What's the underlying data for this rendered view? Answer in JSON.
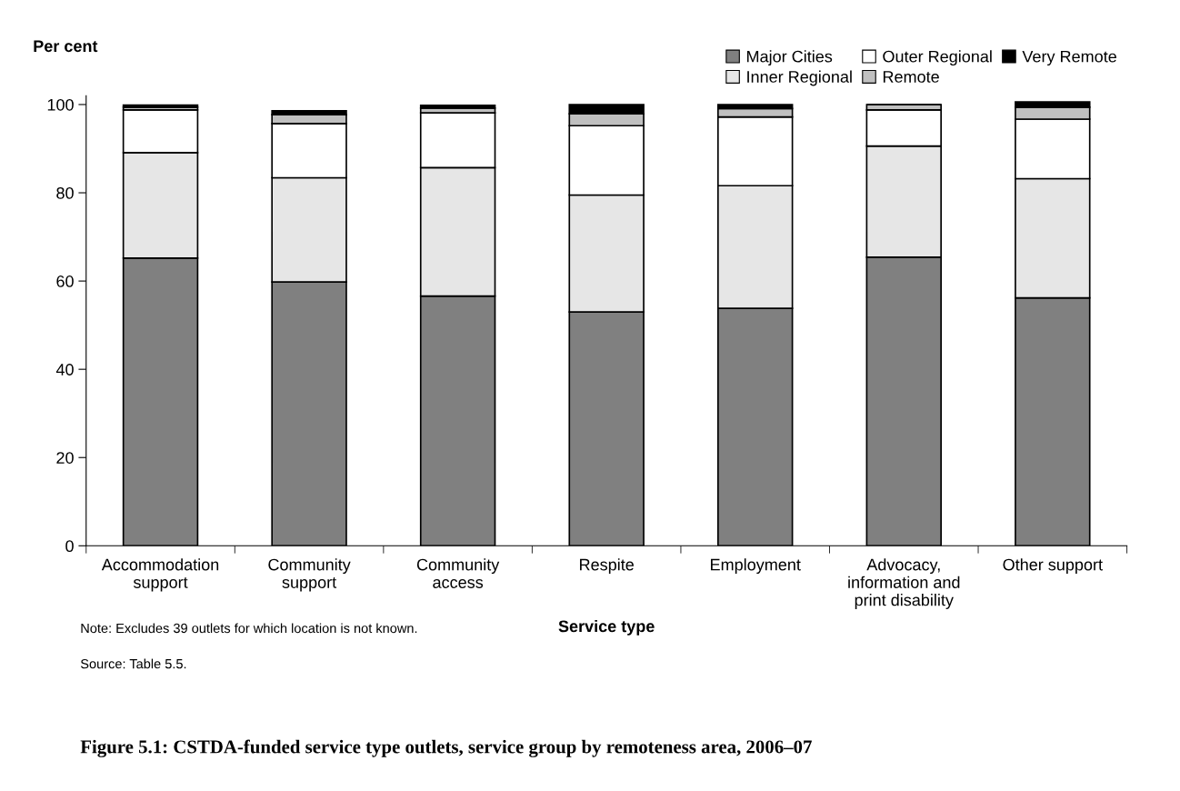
{
  "chart_data": {
    "type": "bar",
    "stacked": true,
    "title": "Figure 5.1: CSTDA-funded service type outlets, service group by remoteness area, 2006–07",
    "xlabel": "Service type",
    "ylabel": "Per cent",
    "categories": [
      "Accommodation\nsupport",
      "Community\nsupport",
      "Community\naccess",
      "Respite",
      "Employment",
      "Advocacy,\ninformation and\nprint disability",
      "Other support"
    ],
    "series": [
      {
        "name": "Major Cities",
        "color": "#808080",
        "values": [
          65.2,
          59.8,
          56.6,
          53.0,
          53.8,
          65.4,
          56.2
        ]
      },
      {
        "name": "Inner Regional",
        "color": "#e6e6e6",
        "values": [
          23.9,
          23.6,
          29.1,
          26.5,
          27.8,
          25.2,
          27.0
        ]
      },
      {
        "name": "Outer Regional",
        "color": "#ffffff",
        "values": [
          9.7,
          12.3,
          12.4,
          15.7,
          15.6,
          8.2,
          13.5
        ]
      },
      {
        "name": "Remote",
        "color": "#c0c0c0",
        "values": [
          0.6,
          2.0,
          1.1,
          2.7,
          1.9,
          1.2,
          2.7
        ]
      },
      {
        "name": "Very Remote",
        "color": "#000000",
        "values": [
          0.5,
          0.9,
          0.6,
          2.1,
          0.9,
          0.0,
          1.2
        ]
      }
    ],
    "ylim": [
      0,
      102
    ],
    "yticks": [
      0,
      20,
      40,
      60,
      80,
      100
    ],
    "grid": false,
    "legend": "top right",
    "annotations": [
      "Note: Excludes 39 outlets for which location is not known.",
      "Source: Table 5.5."
    ]
  }
}
